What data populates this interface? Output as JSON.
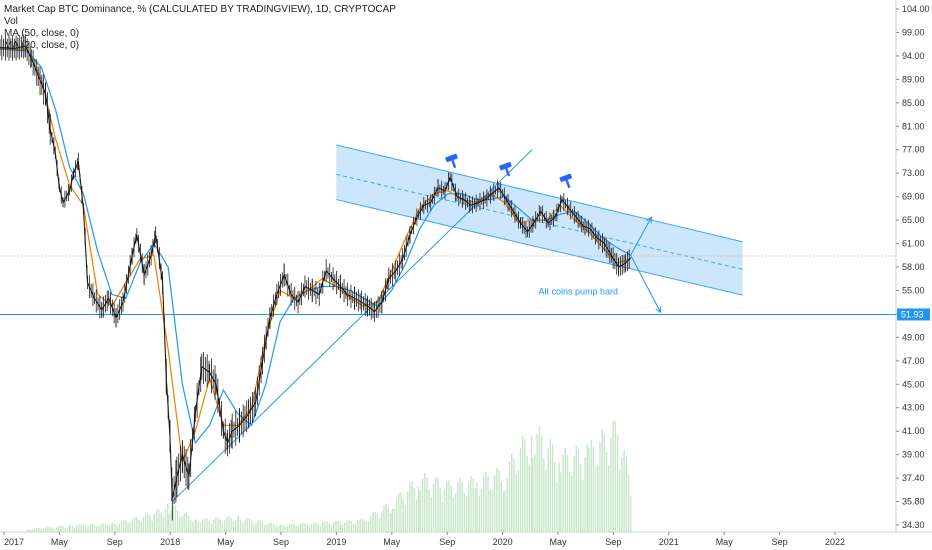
{
  "legend": {
    "title": "Market Cap BTC Dominance, % (CALCULATED BY TRADINGVIEW), 1D, CRYPTOCAP",
    "vol": "Vol",
    "ma50": "MA (50, close, 0)",
    "ma20": "MA (20, close, 0)"
  },
  "colors": {
    "price": "#1a1a1a",
    "ma50": "#2196f3",
    "ma20": "#f57c00",
    "channel_fill": "#bbdefb",
    "channel_line": "#42a5f5",
    "support_line": "#2196f3",
    "volume": "#c8e6c9",
    "last_price_line": "#f4a46a",
    "badge": "#2962ff"
  },
  "chart_data": {
    "type": "line",
    "y_axis_ticks": [
      "104.00",
      "99.00",
      "94.00",
      "89.00",
      "85.00",
      "81.00",
      "77.00",
      "73.00",
      "69.00",
      "65.00",
      "61.00",
      "58.00",
      "55.00",
      "52.00",
      "49.00",
      "47.00",
      "45.00",
      "43.00",
      "41.00",
      "39.00",
      "37.40",
      "35.80",
      "34.30"
    ],
    "y_range": [
      34.3,
      104
    ],
    "x_axis_ticks": [
      "2017",
      "May",
      "Sep",
      "2018",
      "May",
      "Sep",
      "2019",
      "May",
      "Sep",
      "2020",
      "May",
      "Sep",
      "2021",
      "May",
      "Sep",
      "2022"
    ],
    "x_range": [
      "2017-01-01",
      "2022-04-30"
    ],
    "price_points": [
      {
        "x": "2017-01-01",
        "y": 95.8
      },
      {
        "x": "2017-02-01",
        "y": 95.6
      },
      {
        "x": "2017-02-25",
        "y": 96.1
      },
      {
        "x": "2017-03-10",
        "y": 93.5
      },
      {
        "x": "2017-03-25",
        "y": 89.8
      },
      {
        "x": "2017-04-10",
        "y": 86.5
      },
      {
        "x": "2017-04-20",
        "y": 80.5
      },
      {
        "x": "2017-05-01",
        "y": 76.5
      },
      {
        "x": "2017-05-10",
        "y": 70.5
      },
      {
        "x": "2017-05-18",
        "y": 68.0
      },
      {
        "x": "2017-06-01",
        "y": 70.0
      },
      {
        "x": "2017-06-10",
        "y": 73.0
      },
      {
        "x": "2017-06-20",
        "y": 75.0
      },
      {
        "x": "2017-07-01",
        "y": 67.0
      },
      {
        "x": "2017-07-10",
        "y": 56.0
      },
      {
        "x": "2017-07-25",
        "y": 54.0
      },
      {
        "x": "2017-08-10",
        "y": 52.5
      },
      {
        "x": "2017-08-25",
        "y": 54.0
      },
      {
        "x": "2017-09-10",
        "y": 51.5
      },
      {
        "x": "2017-09-25",
        "y": 53.5
      },
      {
        "x": "2017-10-15",
        "y": 59.5
      },
      {
        "x": "2017-10-25",
        "y": 62.5
      },
      {
        "x": "2017-11-10",
        "y": 57.0
      },
      {
        "x": "2017-11-25",
        "y": 59.5
      },
      {
        "x": "2017-12-05",
        "y": 62.5
      },
      {
        "x": "2017-12-20",
        "y": 56.0
      },
      {
        "x": "2017-12-28",
        "y": 45.5
      },
      {
        "x": "2018-01-05",
        "y": 40.5
      },
      {
        "x": "2018-01-10",
        "y": 36.0
      },
      {
        "x": "2018-01-20",
        "y": 37.5
      },
      {
        "x": "2018-02-01",
        "y": 39.0
      },
      {
        "x": "2018-02-15",
        "y": 37.5
      },
      {
        "x": "2018-03-01",
        "y": 42.5
      },
      {
        "x": "2018-03-15",
        "y": 46.5
      },
      {
        "x": "2018-04-01",
        "y": 46.0
      },
      {
        "x": "2018-04-15",
        "y": 45.0
      },
      {
        "x": "2018-05-01",
        "y": 41.0
      },
      {
        "x": "2018-05-10",
        "y": 40.0
      },
      {
        "x": "2018-05-20",
        "y": 41.0
      },
      {
        "x": "2018-06-05",
        "y": 41.5
      },
      {
        "x": "2018-06-25",
        "y": 42.5
      },
      {
        "x": "2018-07-10",
        "y": 43.5
      },
      {
        "x": "2018-07-25",
        "y": 47.0
      },
      {
        "x": "2018-08-10",
        "y": 51.5
      },
      {
        "x": "2018-08-25",
        "y": 54.5
      },
      {
        "x": "2018-09-10",
        "y": 57.0
      },
      {
        "x": "2018-09-25",
        "y": 54.5
      },
      {
        "x": "2018-10-10",
        "y": 53.5
      },
      {
        "x": "2018-10-25",
        "y": 55.5
      },
      {
        "x": "2018-11-10",
        "y": 55.0
      },
      {
        "x": "2018-11-25",
        "y": 54.5
      },
      {
        "x": "2018-12-10",
        "y": 57.5
      },
      {
        "x": "2018-12-25",
        "y": 56.5
      },
      {
        "x": "2019-01-10",
        "y": 55.5
      },
      {
        "x": "2019-01-25",
        "y": 54.5
      },
      {
        "x": "2019-02-10",
        "y": 54.0
      },
      {
        "x": "2019-02-25",
        "y": 53.5
      },
      {
        "x": "2019-03-10",
        "y": 53.0
      },
      {
        "x": "2019-03-25",
        "y": 52.3
      },
      {
        "x": "2019-04-10",
        "y": 53.5
      },
      {
        "x": "2019-04-25",
        "y": 56.5
      },
      {
        "x": "2019-05-10",
        "y": 57.5
      },
      {
        "x": "2019-05-25",
        "y": 59.0
      },
      {
        "x": "2019-06-10",
        "y": 62.5
      },
      {
        "x": "2019-06-25",
        "y": 65.5
      },
      {
        "x": "2019-07-10",
        "y": 67.5
      },
      {
        "x": "2019-07-25",
        "y": 68.0
      },
      {
        "x": "2019-08-10",
        "y": 70.5
      },
      {
        "x": "2019-08-25",
        "y": 70.0
      },
      {
        "x": "2019-09-05",
        "y": 72.3
      },
      {
        "x": "2019-09-20",
        "y": 69.0
      },
      {
        "x": "2019-10-05",
        "y": 68.5
      },
      {
        "x": "2019-10-20",
        "y": 67.5
      },
      {
        "x": "2019-11-05",
        "y": 68.0
      },
      {
        "x": "2019-11-20",
        "y": 68.5
      },
      {
        "x": "2019-12-05",
        "y": 69.5
      },
      {
        "x": "2019-12-20",
        "y": 70.5
      },
      {
        "x": "2020-01-05",
        "y": 68.5
      },
      {
        "x": "2020-01-20",
        "y": 66.5
      },
      {
        "x": "2020-02-05",
        "y": 64.5
      },
      {
        "x": "2020-02-20",
        "y": 63.0
      },
      {
        "x": "2020-03-05",
        "y": 64.5
      },
      {
        "x": "2020-03-20",
        "y": 66.5
      },
      {
        "x": "2020-04-05",
        "y": 64.5
      },
      {
        "x": "2020-04-20",
        "y": 65.5
      },
      {
        "x": "2020-05-05",
        "y": 68.5
      },
      {
        "x": "2020-05-20",
        "y": 67.0
      },
      {
        "x": "2020-06-05",
        "y": 65.5
      },
      {
        "x": "2020-06-20",
        "y": 64.0
      },
      {
        "x": "2020-07-05",
        "y": 63.5
      },
      {
        "x": "2020-07-20",
        "y": 62.0
      },
      {
        "x": "2020-08-05",
        "y": 61.0
      },
      {
        "x": "2020-08-20",
        "y": 59.5
      },
      {
        "x": "2020-09-05",
        "y": 58.0
      },
      {
        "x": "2020-09-20",
        "y": 58.5
      },
      {
        "x": "2020-10-01",
        "y": 59.2
      }
    ],
    "ma50_points": [
      {
        "x": "2017-01-01",
        "y": 95.5
      },
      {
        "x": "2017-03-01",
        "y": 95.0
      },
      {
        "x": "2017-04-01",
        "y": 91.5
      },
      {
        "x": "2017-05-01",
        "y": 84.0
      },
      {
        "x": "2017-06-01",
        "y": 74.0
      },
      {
        "x": "2017-07-01",
        "y": 69.5
      },
      {
        "x": "2017-08-01",
        "y": 60.0
      },
      {
        "x": "2017-09-01",
        "y": 54.5
      },
      {
        "x": "2017-10-01",
        "y": 54.0
      },
      {
        "x": "2017-11-01",
        "y": 58.5
      },
      {
        "x": "2017-12-01",
        "y": 61.0
      },
      {
        "x": "2018-01-01",
        "y": 58.0
      },
      {
        "x": "2018-02-01",
        "y": 45.0
      },
      {
        "x": "2018-03-01",
        "y": 40.0
      },
      {
        "x": "2018-04-01",
        "y": 41.5
      },
      {
        "x": "2018-05-01",
        "y": 44.5
      },
      {
        "x": "2018-06-01",
        "y": 42.5
      },
      {
        "x": "2018-07-01",
        "y": 41.5
      },
      {
        "x": "2018-08-01",
        "y": 45.0
      },
      {
        "x": "2018-09-01",
        "y": 51.0
      },
      {
        "x": "2018-10-01",
        "y": 54.0
      },
      {
        "x": "2018-11-01",
        "y": 55.0
      },
      {
        "x": "2018-12-01",
        "y": 55.5
      },
      {
        "x": "2019-01-01",
        "y": 55.5
      },
      {
        "x": "2019-02-01",
        "y": 55.0
      },
      {
        "x": "2019-03-01",
        "y": 54.0
      },
      {
        "x": "2019-04-01",
        "y": 53.0
      },
      {
        "x": "2019-05-01",
        "y": 55.0
      },
      {
        "x": "2019-06-01",
        "y": 58.5
      },
      {
        "x": "2019-07-01",
        "y": 63.5
      },
      {
        "x": "2019-08-01",
        "y": 67.5
      },
      {
        "x": "2019-09-01",
        "y": 69.5
      },
      {
        "x": "2019-10-01",
        "y": 69.5
      },
      {
        "x": "2019-11-01",
        "y": 68.5
      },
      {
        "x": "2019-12-01",
        "y": 68.5
      },
      {
        "x": "2020-01-01",
        "y": 69.0
      },
      {
        "x": "2020-02-01",
        "y": 67.0
      },
      {
        "x": "2020-03-01",
        "y": 65.0
      },
      {
        "x": "2020-04-01",
        "y": 65.0
      },
      {
        "x": "2020-05-01",
        "y": 66.0
      },
      {
        "x": "2020-06-01",
        "y": 66.5
      },
      {
        "x": "2020-07-01",
        "y": 64.5
      },
      {
        "x": "2020-08-01",
        "y": 62.0
      },
      {
        "x": "2020-09-01",
        "y": 60.5
      },
      {
        "x": "2020-10-01",
        "y": 59.5
      }
    ],
    "ma20_points": [
      {
        "x": "2017-01-01",
        "y": 95.6
      },
      {
        "x": "2017-03-01",
        "y": 95.4
      },
      {
        "x": "2017-04-01",
        "y": 89.0
      },
      {
        "x": "2017-05-01",
        "y": 79.0
      },
      {
        "x": "2017-06-01",
        "y": 71.0
      },
      {
        "x": "2017-07-01",
        "y": 67.5
      },
      {
        "x": "2017-08-01",
        "y": 54.5
      },
      {
        "x": "2017-09-01",
        "y": 53.0
      },
      {
        "x": "2017-10-01",
        "y": 56.0
      },
      {
        "x": "2017-11-01",
        "y": 59.0
      },
      {
        "x": "2017-12-01",
        "y": 59.5
      },
      {
        "x": "2018-01-01",
        "y": 48.0
      },
      {
        "x": "2018-02-01",
        "y": 38.5
      },
      {
        "x": "2018-03-01",
        "y": 41.0
      },
      {
        "x": "2018-04-01",
        "y": 45.5
      },
      {
        "x": "2018-05-01",
        "y": 41.5
      },
      {
        "x": "2018-06-01",
        "y": 41.5
      },
      {
        "x": "2018-07-01",
        "y": 43.0
      },
      {
        "x": "2018-08-01",
        "y": 49.0
      },
      {
        "x": "2018-09-01",
        "y": 55.0
      },
      {
        "x": "2018-10-01",
        "y": 54.0
      },
      {
        "x": "2018-11-01",
        "y": 55.0
      },
      {
        "x": "2018-12-01",
        "y": 56.5
      },
      {
        "x": "2019-01-01",
        "y": 55.5
      },
      {
        "x": "2019-02-01",
        "y": 54.0
      },
      {
        "x": "2019-03-01",
        "y": 53.0
      },
      {
        "x": "2019-04-01",
        "y": 53.5
      },
      {
        "x": "2019-05-01",
        "y": 57.5
      },
      {
        "x": "2019-06-01",
        "y": 62.0
      },
      {
        "x": "2019-07-01",
        "y": 67.0
      },
      {
        "x": "2019-08-01",
        "y": 69.5
      },
      {
        "x": "2019-09-01",
        "y": 70.0
      },
      {
        "x": "2019-10-01",
        "y": 68.5
      },
      {
        "x": "2019-11-01",
        "y": 68.0
      },
      {
        "x": "2019-12-01",
        "y": 69.5
      },
      {
        "x": "2020-01-01",
        "y": 68.0
      },
      {
        "x": "2020-02-01",
        "y": 64.5
      },
      {
        "x": "2020-03-01",
        "y": 65.0
      },
      {
        "x": "2020-04-01",
        "y": 65.0
      },
      {
        "x": "2020-05-01",
        "y": 67.5
      },
      {
        "x": "2020-06-01",
        "y": 65.0
      },
      {
        "x": "2020-07-01",
        "y": 63.0
      },
      {
        "x": "2020-08-01",
        "y": 60.5
      },
      {
        "x": "2020-09-01",
        "y": 58.5
      },
      {
        "x": "2020-10-01",
        "y": 59.0
      }
    ],
    "volume_points": [
      {
        "x": "2017-03-01",
        "y": 0.02
      },
      {
        "x": "2017-06-01",
        "y": 0.05
      },
      {
        "x": "2017-09-01",
        "y": 0.06
      },
      {
        "x": "2017-12-01",
        "y": 0.14
      },
      {
        "x": "2018-01-01",
        "y": 0.2
      },
      {
        "x": "2018-03-01",
        "y": 0.09
      },
      {
        "x": "2018-06-01",
        "y": 0.11
      },
      {
        "x": "2018-09-01",
        "y": 0.05
      },
      {
        "x": "2018-12-01",
        "y": 0.07
      },
      {
        "x": "2019-03-01",
        "y": 0.09
      },
      {
        "x": "2019-05-01",
        "y": 0.22
      },
      {
        "x": "2019-07-01",
        "y": 0.4
      },
      {
        "x": "2019-09-01",
        "y": 0.35
      },
      {
        "x": "2019-11-01",
        "y": 0.38
      },
      {
        "x": "2020-01-01",
        "y": 0.45
      },
      {
        "x": "2020-03-01",
        "y": 0.75
      },
      {
        "x": "2020-05-01",
        "y": 0.55
      },
      {
        "x": "2020-07-01",
        "y": 0.6
      },
      {
        "x": "2020-09-01",
        "y": 0.78
      },
      {
        "x": "2020-10-01",
        "y": 0.35
      }
    ],
    "last_price": "51.93",
    "horizontal_level": 51.93,
    "last_close_level": 59.4,
    "channel": {
      "upper": [
        {
          "x": "2019-01-01",
          "y": 77.8
        },
        {
          "x": "2021-06-01",
          "y": 61.3
        }
      ],
      "mid": [
        {
          "x": "2019-01-01",
          "y": 72.8
        },
        {
          "x": "2021-06-01",
          "y": 57.7
        }
      ],
      "lower": [
        {
          "x": "2019-01-01",
          "y": 68.5
        },
        {
          "x": "2021-06-01",
          "y": 54.4
        }
      ]
    },
    "support_line": [
      {
        "x": "2018-01-10",
        "y": 35.8
      },
      {
        "x": "2020-03-01",
        "y": 77.0
      }
    ],
    "arrows": [
      {
        "from": {
          "x": "2020-10-01",
          "y": 59.5
        },
        "to": {
          "x": "2020-11-15",
          "y": 65.5
        }
      },
      {
        "from": {
          "x": "2020-10-01",
          "y": 59.5
        },
        "to": {
          "x": "2020-12-05",
          "y": 52.2
        }
      }
    ],
    "annotation": "Alt coins pump hard",
    "markers": [
      {
        "x": "2019-09-10",
        "y": 75.2
      },
      {
        "x": "2020-01-05",
        "y": 73.8
      },
      {
        "x": "2020-05-15",
        "y": 71.8
      }
    ]
  }
}
